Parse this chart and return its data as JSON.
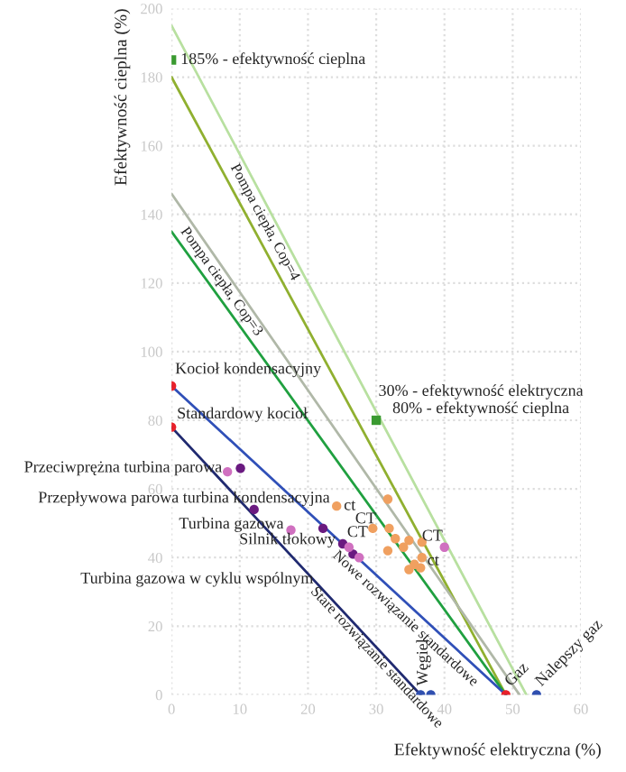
{
  "chart_data": {
    "type": "scatter",
    "xlabel": "Efektywność elektryczna (%)",
    "ylabel": "Efektywność cieplna (%)",
    "xlim": [
      0,
      60
    ],
    "ylim": [
      0,
      200
    ],
    "xticks": [
      0,
      10,
      20,
      30,
      40,
      50,
      60
    ],
    "yticks": [
      0,
      20,
      40,
      60,
      80,
      100,
      120,
      140,
      160,
      180,
      200
    ],
    "grid": true,
    "series": [
      {
        "type": "line",
        "color": "#b8e0a0",
        "x": [
          0,
          52
        ],
        "values": [
          195,
          0
        ]
      },
      {
        "type": "line",
        "color": "#90b030",
        "x": [
          0,
          49
        ],
        "values": [
          180,
          0
        ]
      },
      {
        "type": "line",
        "color": "#b0b8a8",
        "x": [
          0,
          51
        ],
        "values": [
          146,
          0
        ]
      },
      {
        "type": "line",
        "color": "#20a040",
        "x": [
          0,
          49
        ],
        "values": [
          135,
          0
        ]
      },
      {
        "type": "line",
        "color": "#3050b8",
        "x": [
          0,
          49
        ],
        "values": [
          90,
          0
        ]
      },
      {
        "type": "line",
        "color": "#202a70",
        "x": [
          0,
          36.5
        ],
        "values": [
          78,
          0
        ]
      },
      {
        "marker": "square",
        "color": "#3a9a30",
        "x": [
          0,
          30
        ],
        "values": [
          185,
          80
        ]
      },
      {
        "marker": "circle",
        "color": "#e8202a",
        "x": [
          0,
          0,
          49
        ],
        "values": [
          90,
          78,
          0
        ]
      },
      {
        "marker": "circle",
        "color": "#3050b0",
        "x": [
          36.5,
          38,
          53.5
        ],
        "values": [
          0,
          0,
          0
        ]
      },
      {
        "marker": "circle",
        "color": "#6a1a80",
        "x": [
          10.1,
          12.1,
          22.2,
          25.1,
          26.6
        ],
        "values": [
          66,
          54,
          48.5,
          44,
          41
        ]
      },
      {
        "marker": "circle",
        "color": "#d070c0",
        "x": [
          8.2,
          17.5,
          26,
          27.5,
          40
        ],
        "values": [
          65,
          48,
          43,
          40,
          43
        ]
      },
      {
        "marker": "circle",
        "color": "#f0a060",
        "x": [
          24.2,
          29.5,
          31.7,
          31.9,
          32.8,
          31.7,
          34,
          34.8,
          36.7,
          34.8,
          35.6,
          36.7,
          36.5
        ],
        "values": [
          55,
          48.5,
          57,
          48.5,
          45.5,
          42,
          43,
          45,
          44.5,
          36.5,
          38,
          40,
          37
        ]
      }
    ],
    "annotations": [
      {
        "text": "185% - efektywność cieplna",
        "x": 0,
        "y": 185
      },
      {
        "text": "30% - efektywność elektryczna\n80% - efektywność cieplna",
        "x": 30,
        "y": 80
      },
      {
        "text": "Kocioł kondensacyjny",
        "x": 0,
        "y": 90
      },
      {
        "text": "Standardowy kocioł",
        "x": 0,
        "y": 78
      },
      {
        "text": "Przeciwprężna turbina parowa",
        "x": 8.2,
        "y": 65
      },
      {
        "text": "Przepływowa parowa turbina kondensacyjna",
        "x": 12.1,
        "y": 54
      },
      {
        "text": "Turbina gazowa",
        "x": 17.5,
        "y": 48
      },
      {
        "text": "Silnik tłokowy",
        "x": 25.1,
        "y": 44
      },
      {
        "text": "Turbina gazowa w cyklu wspólnym",
        "x": 26.6,
        "y": 41
      },
      {
        "text": "Pompa ciepła, Cop=4",
        "x": 12,
        "y": 135.9
      },
      {
        "text": "Pompa ciepła, Cop=3",
        "x": 6,
        "y": 118.5
      },
      {
        "text": "Nowe rozwiązanie standardowe",
        "x": 35.5,
        "y": 24.8
      },
      {
        "text": "Stare rozwiązanie standardowe",
        "x": 30.8,
        "y": 12.2
      },
      {
        "text": "ct",
        "x": 24.2,
        "y": 55
      },
      {
        "text": "CT",
        "x": 29.5,
        "y": 48.5
      },
      {
        "text": "CT",
        "x": 26,
        "y": 43
      },
      {
        "text": "CT",
        "x": 36.7,
        "y": 44.5
      },
      {
        "text": "ct",
        "x": 36.7,
        "y": 40
      },
      {
        "text": "Gaz",
        "x": 49,
        "y": 0
      },
      {
        "text": "Nalepszy gaz",
        "x": 53.5,
        "y": 0
      },
      {
        "text": "Węgiel",
        "x": 38,
        "y": 0
      }
    ]
  }
}
